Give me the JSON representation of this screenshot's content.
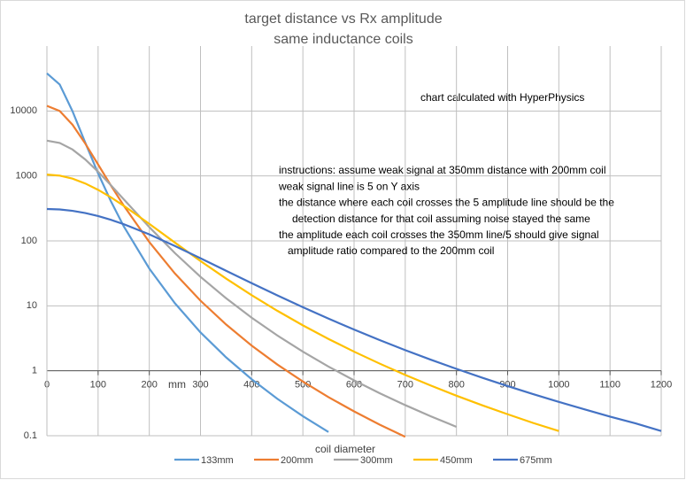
{
  "chart_data": {
    "type": "line",
    "title": "target distance vs Rx amplitude",
    "subtitle": "same inductance coils",
    "x_label": "mm",
    "legend_title": "coil diameter",
    "annotations": [
      "chart calculated with HyperPhysics"
    ],
    "instructions": [
      "instructions: assume weak signal at 350mm distance with 200mm coil",
      "weak signal line is 5 on Y axis",
      "the distance where each coil crosses the 5 amplitude line should be the",
      "detection distance for that coil assuming noise stayed the same",
      "the amplitude each coil crosses the 350mm line/5 should give signal",
      "amplitude ratio compared to the 200mm coil"
    ],
    "x": [
      0,
      25,
      50,
      75,
      100,
      125,
      150,
      200,
      250,
      300,
      350,
      400,
      450,
      500,
      550,
      600,
      650,
      700,
      750,
      800,
      850,
      900,
      950,
      1000,
      1050,
      1100,
      1150,
      1200
    ],
    "series": [
      {
        "name": "133mm",
        "color": "#5b9bd5",
        "values": [
          38000,
          25560,
          9910,
          3241,
          1096,
          408,
          168,
          37.5,
          10.96,
          3.9,
          1.61,
          0.74,
          0.371,
          0.2,
          0.114,
          null,
          null,
          null,
          null,
          null,
          null,
          null,
          null,
          null,
          null,
          null,
          null,
          null
        ]
      },
      {
        "name": "200mm",
        "color": "#ed7d31",
        "values": [
          12000,
          10000,
          6144,
          3146,
          1500,
          713,
          350,
          96,
          31.5,
          12,
          5.16,
          2.44,
          1.25,
          0.683,
          0.393,
          0.237,
          0.148,
          0.096,
          null,
          null,
          null,
          null,
          null,
          null,
          null,
          null,
          null,
          null
        ]
      },
      {
        "name": "300mm",
        "color": "#a5a5a5",
        "values": [
          3500,
          3224,
          2552,
          1792,
          1161,
          719,
          438,
          163,
          64.9,
          28,
          13.1,
          6.56,
          3.5,
          1.97,
          1.16,
          0.712,
          0.452,
          0.296,
          0.199,
          0.137,
          null,
          null,
          null,
          null,
          null,
          null,
          null,
          null
        ]
      },
      {
        "name": "450mm",
        "color": "#ffc000",
        "values": [
          1050,
          1012,
          909,
          765,
          611,
          469,
          348,
          183,
          94.1,
          49,
          26.3,
          14.6,
          8.4,
          5.01,
          3.09,
          1.97,
          1.29,
          0.862,
          0.591,
          0.413,
          0.295,
          0.214,
          0.157,
          0.118,
          null,
          null,
          null,
          null
        ]
      },
      {
        "name": "675mm",
        "color": "#4472c4",
        "values": [
          310,
          305,
          290,
          268,
          241,
          211,
          181,
          126,
          83.5,
          54,
          34.7,
          22.3,
          14.5,
          9.51,
          6.35,
          4.31,
          2.97,
          2.08,
          1.48,
          1.07,
          0.783,
          0.581,
          0.436,
          0.332,
          0.255,
          0.197,
          0.155,
          0.118
        ]
      }
    ],
    "xlim": [
      0,
      1200
    ],
    "xticks": [
      0,
      100,
      200,
      300,
      400,
      500,
      600,
      700,
      800,
      900,
      1000,
      1100,
      1200
    ],
    "ylim": [
      0.1,
      100000
    ],
    "yticks": [
      0.1,
      1,
      10,
      100,
      1000,
      10000
    ],
    "log_y": true,
    "x_axis_crosses": 1,
    "grid": true,
    "legend": "bottom"
  }
}
